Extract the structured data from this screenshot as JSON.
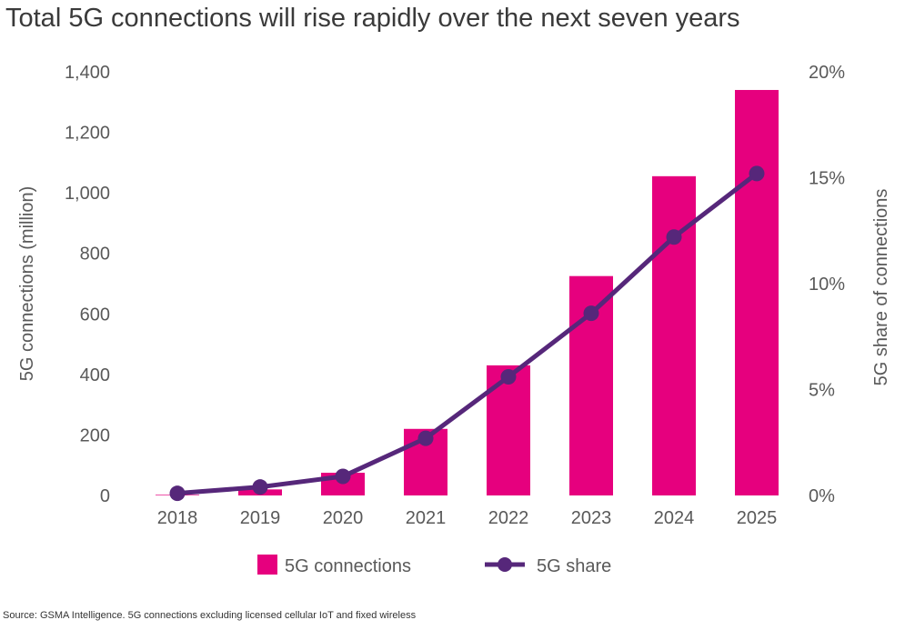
{
  "colors": {
    "bar": "#e6007e",
    "line": "#56277a",
    "text": "#595959",
    "title": "#3a3a3a"
  },
  "source": "Source: GSMA Intelligence. 5G connections excluding licensed cellular IoT and fixed wireless",
  "chart_data": {
    "type": "bar",
    "title": "Total 5G connections will rise rapidly over the next seven years",
    "categories": [
      "2018",
      "2019",
      "2020",
      "2021",
      "2022",
      "2023",
      "2024",
      "2025"
    ],
    "ylabel": "5G connections (million)",
    "ylabel_right": "5G share of connections",
    "ylim": [
      0,
      1400
    ],
    "ylim_right": [
      0,
      20
    ],
    "yticks": [
      "0",
      "200",
      "400",
      "600",
      "800",
      "1,000",
      "1,200",
      "1,400"
    ],
    "yticks_right": [
      "0%",
      "5%",
      "10%",
      "15%",
      "20%"
    ],
    "grid": false,
    "legend_position": "bottom",
    "series": [
      {
        "name": "5G connections",
        "type": "bar",
        "axis": "left",
        "values": [
          2,
          20,
          75,
          220,
          430,
          725,
          1055,
          1340
        ]
      },
      {
        "name": "5G share",
        "type": "line",
        "axis": "right",
        "values": [
          0.1,
          0.4,
          0.9,
          2.7,
          5.6,
          8.6,
          12.2,
          15.2
        ]
      }
    ]
  }
}
